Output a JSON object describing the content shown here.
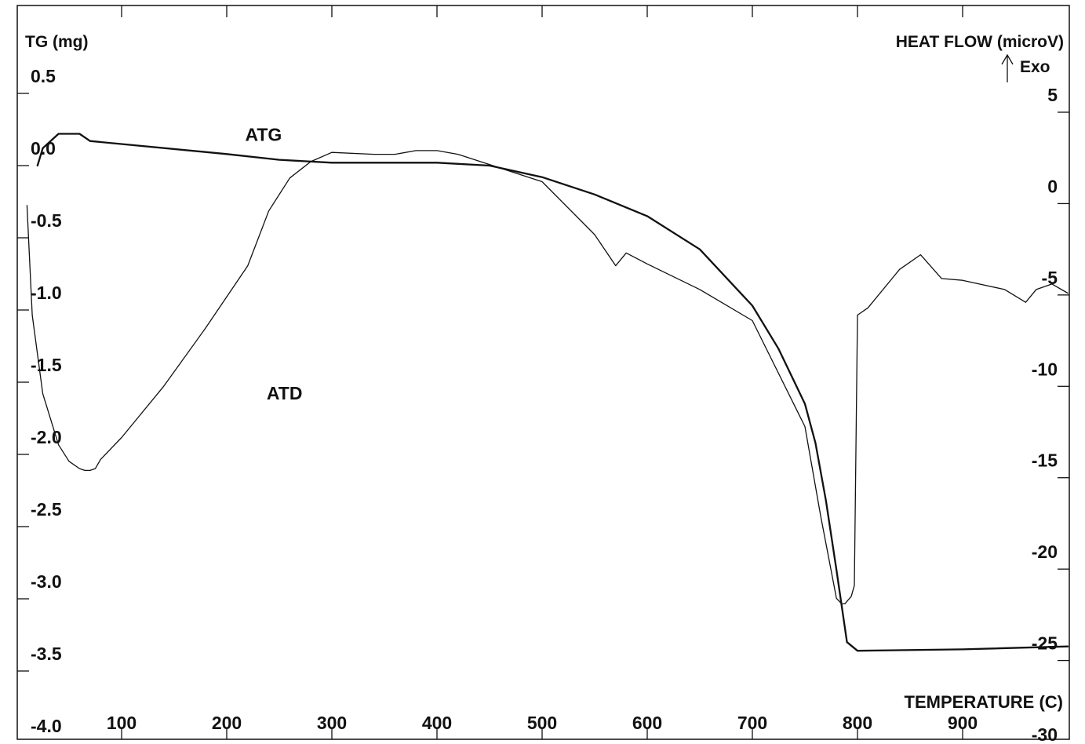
{
  "chart_data": {
    "type": "line",
    "title": "",
    "xlabel": "TEMPERATURE (C)",
    "ylabel_left": "TG (mg)",
    "ylabel_right": "HEAT FLOW (microV)",
    "exo_label": "Exo",
    "xlim": [
      0,
      1000
    ],
    "ylim_left": [
      -4.0,
      0.5
    ],
    "ylim_right": [
      -30,
      5
    ],
    "x_ticks": [
      100,
      200,
      300,
      400,
      500,
      600,
      700,
      800,
      900
    ],
    "x_tick_labels": [
      "100",
      "200",
      "300",
      "400",
      "500",
      "600",
      "700",
      "800",
      "900"
    ],
    "y_left_ticks": [
      0.5,
      0.0,
      -0.5,
      -1.0,
      -1.5,
      -2.0,
      -2.5,
      -3.0,
      -3.5,
      -4.0
    ],
    "y_left_tick_labels": [
      "0.5",
      "0.0",
      "-0.5",
      "-1.0",
      "-1.5",
      "-2.0",
      "-2.5",
      "-3.0",
      "-3.5",
      "-4.0"
    ],
    "y_right_ticks": [
      5,
      0,
      -5,
      -10,
      -15,
      -20,
      -25,
      -30
    ],
    "y_right_tick_labels": [
      "5",
      "0",
      "-5",
      "-10",
      "-15",
      "-20",
      "-25",
      "-30"
    ],
    "grid": false,
    "series": [
      {
        "name": "ATG",
        "axis": "left",
        "x": [
          20,
          25,
          40,
          60,
          70,
          200,
          250,
          300,
          350,
          400,
          450,
          500,
          550,
          600,
          650,
          700,
          725,
          750,
          760,
          770,
          780,
          790,
          800,
          900,
          1000
        ],
        "y": [
          0.0,
          0.12,
          0.22,
          0.22,
          0.17,
          0.08,
          0.04,
          0.02,
          0.02,
          0.02,
          0.0,
          -0.08,
          -0.2,
          -0.35,
          -0.58,
          -0.97,
          -1.27,
          -1.65,
          -1.92,
          -2.32,
          -2.8,
          -3.3,
          -3.36,
          -3.35,
          -3.33
        ]
      },
      {
        "name": "ATD",
        "axis": "right",
        "x": [
          10,
          15,
          25,
          40,
          50,
          60,
          65,
          70,
          75,
          80,
          100,
          140,
          180,
          220,
          240,
          260,
          280,
          300,
          340,
          360,
          380,
          400,
          420,
          500,
          550,
          570,
          580,
          600,
          650,
          700,
          750,
          765,
          780,
          785,
          788,
          791,
          794,
          797,
          800,
          810,
          840,
          860,
          880,
          900,
          940,
          960,
          970,
          985,
          1000
        ],
        "y": [
          -0.1,
          -6.1,
          -10.4,
          -13.2,
          -14.1,
          -14.5,
          -14.6,
          -14.6,
          -14.5,
          -14.0,
          -12.8,
          -10.0,
          -6.8,
          -3.4,
          -0.4,
          1.4,
          2.3,
          2.8,
          2.7,
          2.7,
          2.9,
          2.9,
          2.7,
          1.2,
          -1.7,
          -3.4,
          -2.7,
          -3.3,
          -4.7,
          -6.4,
          -12.2,
          -17.1,
          -21.6,
          -21.9,
          -21.9,
          -21.7,
          -21.5,
          -20.9,
          -6.1,
          -5.7,
          -3.6,
          -2.8,
          -4.1,
          -4.2,
          -4.7,
          -5.4,
          -4.7,
          -4.4,
          -4.9
        ]
      }
    ],
    "annotations": [
      {
        "text": "ATG",
        "x": 235,
        "y_left": 0.17
      },
      {
        "text": "ATD",
        "x": 255,
        "y_left": -1.62
      }
    ],
    "line_color": "#111111"
  }
}
